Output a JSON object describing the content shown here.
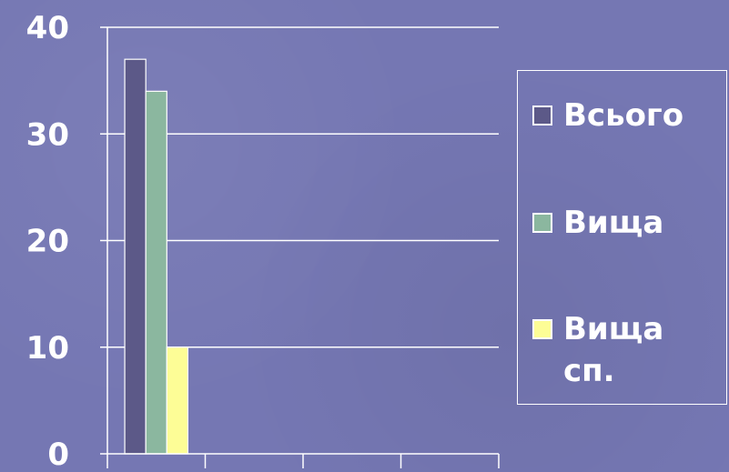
{
  "chart_data": {
    "type": "bar",
    "categories": [
      "",
      "",
      "",
      ""
    ],
    "series": [
      {
        "name": "Всього",
        "color": "#5c5988",
        "values": [
          37,
          null,
          null,
          null
        ]
      },
      {
        "name": "Вища",
        "color": "#8bb79f",
        "values": [
          34,
          null,
          null,
          null
        ]
      },
      {
        "name": "Вища сп.",
        "color": "#fdfd96",
        "values": [
          10,
          null,
          null,
          null
        ]
      }
    ],
    "yticks": [
      "0",
      "10",
      "20",
      "30",
      "40"
    ],
    "ylim": [
      0,
      40
    ],
    "grid": true,
    "legend_position": "right",
    "title": "",
    "xlabel": "",
    "ylabel": ""
  },
  "legend": {
    "items": [
      {
        "label": "Всього",
        "color": "#5c5988"
      },
      {
        "label": "Вища",
        "color": "#8bb79f"
      },
      {
        "label": "Вища сп.",
        "color": "#fdfd96"
      }
    ]
  }
}
